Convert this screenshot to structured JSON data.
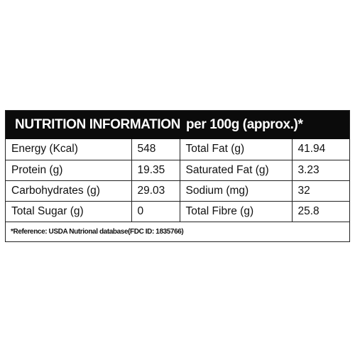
{
  "header": {
    "title": "NUTRITION INFORMATION",
    "subtitle": "per 100g (approx.)*"
  },
  "rows": [
    {
      "label_left": "Energy (Kcal)",
      "value_left": "548",
      "label_right": "Total Fat (g)",
      "value_right": "41.94"
    },
    {
      "label_left": "Protein (g)",
      "value_left": "19.35",
      "label_right": "Saturated Fat (g)",
      "value_right": "3.23"
    },
    {
      "label_left": "Carbohydrates (g)",
      "value_left": "29.03",
      "label_right": "Sodium (mg)",
      "value_right": "32"
    },
    {
      "label_left": "Total Sugar (g)",
      "value_left": "0",
      "label_right": "Total Fibre (g)",
      "value_right": "25.8"
    }
  ],
  "reference": "*Reference: USDA Nutrional database(FDC ID: 1835766)"
}
